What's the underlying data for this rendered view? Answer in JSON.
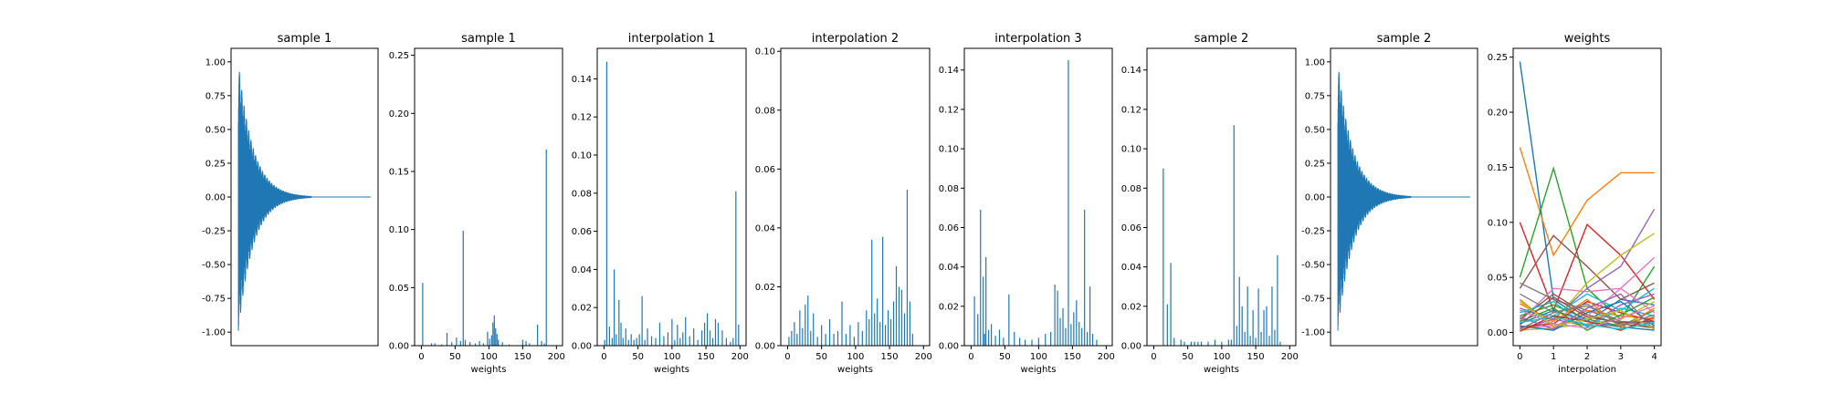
{
  "figure": {
    "titles": [
      "sample 1",
      "sample 1",
      "interpolation 1",
      "interpolation 2",
      "interpolation 3",
      "sample 2",
      "sample 2",
      "weights"
    ],
    "xlabels": [
      "",
      "weights",
      "weights",
      "weights",
      "weights",
      "weights",
      "",
      "interpolation"
    ]
  },
  "colors": {
    "primary": "#1f77b4",
    "palette": [
      "#1f77b4",
      "#ff7f0e",
      "#2ca02c",
      "#d62728",
      "#9467bd",
      "#8c564b",
      "#e377c2",
      "#7f7f7f",
      "#bcbd22",
      "#17becf"
    ]
  },
  "chart_data": [
    {
      "type": "line",
      "title": "sample 1",
      "xlabel": "",
      "ylim": [
        -1.1,
        1.1
      ],
      "yticks": [
        "1.00",
        "0.75",
        "0.50",
        "0.25",
        "0.00",
        "-0.25",
        "-0.50",
        "-0.75",
        "-1.00"
      ],
      "ytick_values": [
        1.0,
        0.75,
        0.5,
        0.25,
        0.0,
        -0.25,
        -0.5,
        -0.75,
        -1.0
      ],
      "xticks": [],
      "envelope": {
        "peak": 1.0,
        "min": -1.0,
        "decay": "exponential",
        "description_free": true
      }
    },
    {
      "type": "bar",
      "title": "sample 1",
      "xlabel": "weights",
      "xlim": [
        -10,
        209
      ],
      "ylim": [
        0,
        0.256
      ],
      "xticks": [
        0,
        50,
        100,
        150,
        200
      ],
      "yticks": [
        "0.00",
        "0.05",
        "0.10",
        "0.15",
        "0.20",
        "0.25"
      ],
      "ytick_values": [
        0.0,
        0.05,
        0.1,
        0.15,
        0.2,
        0.25
      ],
      "x": [
        2,
        15,
        20,
        30,
        38,
        45,
        52,
        58,
        62,
        65,
        72,
        80,
        86,
        92,
        98,
        101,
        104,
        106,
        108,
        110,
        112,
        114,
        120,
        130,
        150,
        155,
        160,
        172,
        178,
        182,
        185
      ],
      "values": [
        0.054,
        0.002,
        0.002,
        0.001,
        0.011,
        0.003,
        0.007,
        0.004,
        0.099,
        0.005,
        0.003,
        0.002,
        0.004,
        0.002,
        0.012,
        0.006,
        0.009,
        0.02,
        0.026,
        0.015,
        0.01,
        0.005,
        0.003,
        0.001,
        0.005,
        0.004,
        0.002,
        0.018,
        0.004,
        0.002,
        0.169
      ]
    },
    {
      "type": "bar",
      "title": "interpolation 1",
      "xlabel": "weights",
      "xlim": [
        -10,
        209
      ],
      "ylim": [
        0,
        0.156
      ],
      "xticks": [
        0,
        50,
        100,
        150,
        200
      ],
      "yticks": [
        "0.00",
        "0.02",
        "0.04",
        "0.06",
        "0.08",
        "0.10",
        "0.12",
        "0.14"
      ],
      "ytick_values": [
        0,
        0.02,
        0.04,
        0.06,
        0.08,
        0.1,
        0.12,
        0.14
      ],
      "x": [
        1,
        4,
        8,
        12,
        15,
        18,
        22,
        25,
        28,
        32,
        36,
        40,
        44,
        48,
        52,
        56,
        60,
        64,
        70,
        76,
        82,
        88,
        94,
        100,
        104,
        108,
        112,
        116,
        120,
        126,
        132,
        138,
        144,
        148,
        152,
        156,
        160,
        164,
        168,
        174,
        180,
        186,
        190,
        194,
        198
      ],
      "values": [
        0.003,
        0.149,
        0.01,
        0.004,
        0.04,
        0.006,
        0.024,
        0.012,
        0.004,
        0.009,
        0.003,
        0.006,
        0.003,
        0.004,
        0.006,
        0.026,
        0.003,
        0.009,
        0.005,
        0.004,
        0.012,
        0.005,
        0.007,
        0.014,
        0.003,
        0.011,
        0.004,
        0.007,
        0.015,
        0.005,
        0.009,
        0.003,
        0.008,
        0.012,
        0.017,
        0.008,
        0.004,
        0.014,
        0.012,
        0.008,
        0.004,
        0.002,
        0.004,
        0.081,
        0.011
      ]
    },
    {
      "type": "bar",
      "title": "interpolation 2",
      "xlabel": "weights",
      "xlim": [
        -10,
        209
      ],
      "ylim": [
        0,
        0.101
      ],
      "xticks": [
        0,
        50,
        100,
        150,
        200
      ],
      "yticks": [
        "0.00",
        "0.02",
        "0.04",
        "0.06",
        "0.08",
        "0.10"
      ],
      "ytick_values": [
        0,
        0.02,
        0.04,
        0.06,
        0.08,
        0.1
      ],
      "x": [
        2,
        6,
        10,
        14,
        18,
        22,
        26,
        30,
        34,
        38,
        44,
        50,
        56,
        62,
        68,
        74,
        80,
        86,
        92,
        98,
        104,
        110,
        116,
        120,
        124,
        128,
        132,
        136,
        140,
        144,
        148,
        152,
        156,
        160,
        164,
        168,
        172,
        176,
        180,
        184
      ],
      "values": [
        0.003,
        0.005,
        0.008,
        0.004,
        0.012,
        0.006,
        0.014,
        0.017,
        0.005,
        0.011,
        0.003,
        0.007,
        0.004,
        0.009,
        0.004,
        0.005,
        0.015,
        0.004,
        0.007,
        0.003,
        0.008,
        0.005,
        0.012,
        0.009,
        0.036,
        0.011,
        0.016,
        0.008,
        0.037,
        0.007,
        0.012,
        0.009,
        0.015,
        0.027,
        0.02,
        0.019,
        0.011,
        0.053,
        0.015,
        0.004
      ]
    },
    {
      "type": "bar",
      "title": "interpolation 3",
      "xlabel": "weights",
      "xlim": [
        -10,
        209
      ],
      "ylim": [
        0,
        0.151
      ],
      "xticks": [
        0,
        50,
        100,
        150,
        200
      ],
      "yticks": [
        "0.00",
        "0.02",
        "0.04",
        "0.06",
        "0.08",
        "0.10",
        "0.12",
        "0.14"
      ],
      "ytick_values": [
        0,
        0.02,
        0.04,
        0.06,
        0.08,
        0.1,
        0.12,
        0.14
      ],
      "x": [
        5,
        10,
        14,
        18,
        20,
        22,
        26,
        30,
        36,
        42,
        48,
        56,
        64,
        72,
        80,
        90,
        100,
        110,
        118,
        124,
        128,
        132,
        136,
        140,
        144,
        148,
        152,
        156,
        160,
        164,
        168,
        172,
        176,
        180,
        186
      ],
      "values": [
        0.025,
        0.016,
        0.069,
        0.035,
        0.006,
        0.045,
        0.008,
        0.011,
        0.005,
        0.008,
        0.004,
        0.026,
        0.007,
        0.004,
        0.003,
        0.003,
        0.004,
        0.006,
        0.007,
        0.031,
        0.028,
        0.014,
        0.019,
        0.009,
        0.145,
        0.011,
        0.017,
        0.023,
        0.012,
        0.009,
        0.069,
        0.007,
        0.03,
        0.006,
        0.003
      ]
    },
    {
      "type": "bar",
      "title": "sample 2",
      "xlabel": "weights",
      "xlim": [
        -10,
        209
      ],
      "ylim": [
        0,
        0.151
      ],
      "xticks": [
        0,
        50,
        100,
        150,
        200
      ],
      "yticks": [
        "0.00",
        "0.02",
        "0.04",
        "0.06",
        "0.08",
        "0.10",
        "0.12",
        "0.14"
      ],
      "ytick_values": [
        0,
        0.02,
        0.04,
        0.06,
        0.08,
        0.1,
        0.12,
        0.14
      ],
      "x": [
        14,
        20,
        25,
        30,
        40,
        45,
        55,
        60,
        65,
        70,
        80,
        90,
        100,
        110,
        114,
        118,
        122,
        126,
        130,
        134,
        138,
        142,
        146,
        150,
        154,
        158,
        162,
        166,
        170,
        174,
        178,
        182,
        186
      ],
      "values": [
        0.09,
        0.021,
        0.042,
        0.004,
        0.003,
        0.002,
        0.002,
        0.002,
        0.002,
        0.002,
        0.002,
        0.003,
        0.002,
        0.003,
        0.003,
        0.112,
        0.01,
        0.035,
        0.02,
        0.007,
        0.03,
        0.005,
        0.018,
        0.004,
        0.029,
        0.007,
        0.018,
        0.02,
        0.005,
        0.03,
        0.008,
        0.046,
        0.002
      ]
    },
    {
      "type": "line",
      "title": "sample 2",
      "xlabel": "",
      "ylim": [
        -1.1,
        1.1
      ],
      "yticks": [
        "1.00",
        "0.75",
        "0.50",
        "0.25",
        "0.00",
        "-0.25",
        "-0.50",
        "-0.75",
        "-1.00"
      ],
      "ytick_values": [
        1.0,
        0.75,
        0.5,
        0.25,
        0.0,
        -0.25,
        -0.5,
        -0.75,
        -1.0
      ],
      "xticks": [],
      "envelope": {
        "peak": 1.0,
        "min": -1.0,
        "decay": "exponential"
      }
    },
    {
      "type": "line",
      "title": "weights",
      "xlabel": "interpolation",
      "xlim": [
        -0.2,
        4.2
      ],
      "ylim": [
        -0.012,
        0.258
      ],
      "xticks": [
        0,
        1,
        2,
        3,
        4
      ],
      "yticks": [
        "0.00",
        "0.05",
        "0.10",
        "0.15",
        "0.20",
        "0.25"
      ],
      "ytick_values": [
        0,
        0.05,
        0.1,
        0.15,
        0.2,
        0.25
      ],
      "x": [
        0,
        1,
        2,
        3,
        4
      ],
      "series": [
        {
          "values": [
            0.246,
            0.03,
            0.01,
            0.005,
            0.002
          ]
        },
        {
          "values": [
            0.168,
            0.07,
            0.12,
            0.145,
            0.145
          ]
        },
        {
          "values": [
            0.05,
            0.149,
            0.04,
            0.012,
            0.06
          ]
        },
        {
          "values": [
            0.1,
            0.02,
            0.098,
            0.07,
            0.03
          ]
        },
        {
          "values": [
            0.003,
            0.012,
            0.04,
            0.06,
            0.112
          ]
        },
        {
          "values": [
            0.04,
            0.088,
            0.06,
            0.03,
            0.045
          ]
        },
        {
          "values": [
            0.01,
            0.04,
            0.037,
            0.04,
            0.068
          ]
        },
        {
          "values": [
            0.045,
            0.03,
            0.02,
            0.01,
            0.005
          ]
        },
        {
          "values": [
            0.002,
            0.01,
            0.045,
            0.07,
            0.09
          ]
        },
        {
          "values": [
            0.02,
            0.015,
            0.035,
            0.02,
            0.04
          ]
        },
        {
          "values": [
            0.008,
            0.02,
            0.01,
            0.03,
            0.025
          ]
        },
        {
          "values": [
            0.03,
            0.005,
            0.02,
            0.015,
            0.012
          ]
        },
        {
          "values": [
            0.015,
            0.025,
            0.012,
            0.006,
            0.02
          ]
        },
        {
          "values": [
            0.005,
            0.008,
            0.028,
            0.018,
            0.01
          ]
        },
        {
          "values": [
            0.022,
            0.012,
            0.006,
            0.025,
            0.035
          ]
        },
        {
          "values": [
            0.012,
            0.035,
            0.016,
            0.008,
            0.004
          ]
        },
        {
          "values": [
            0.004,
            0.006,
            0.015,
            0.04,
            0.018
          ]
        },
        {
          "values": [
            0.035,
            0.018,
            0.024,
            0.01,
            0.008
          ]
        },
        {
          "values": [
            0.002,
            0.004,
            0.008,
            0.012,
            0.028
          ]
        },
        {
          "values": [
            0.018,
            0.028,
            0.005,
            0.022,
            0.015
          ]
        },
        {
          "values": [
            0.006,
            0.002,
            0.018,
            0.028,
            0.006
          ]
        },
        {
          "values": [
            0.026,
            0.01,
            0.03,
            0.004,
            0.022
          ]
        },
        {
          "values": [
            0.01,
            0.022,
            0.002,
            0.016,
            0.032
          ]
        },
        {
          "values": [
            0.001,
            0.015,
            0.01,
            0.002,
            0.014
          ]
        },
        {
          "values": [
            0.014,
            0.003,
            0.022,
            0.035,
            0.002
          ]
        },
        {
          "values": [
            0.007,
            0.032,
            0.014,
            0.009,
            0.01
          ]
        },
        {
          "values": [
            0.02,
            0.008,
            0.004,
            0.013,
            0.024
          ]
        },
        {
          "values": [
            0.003,
            0.018,
            0.026,
            0.006,
            0.016
          ]
        },
        {
          "values": [
            0.028,
            0.006,
            0.012,
            0.02,
            0.003
          ]
        },
        {
          "values": [
            0.009,
            0.014,
            0.007,
            0.003,
            0.009
          ]
        }
      ]
    }
  ]
}
